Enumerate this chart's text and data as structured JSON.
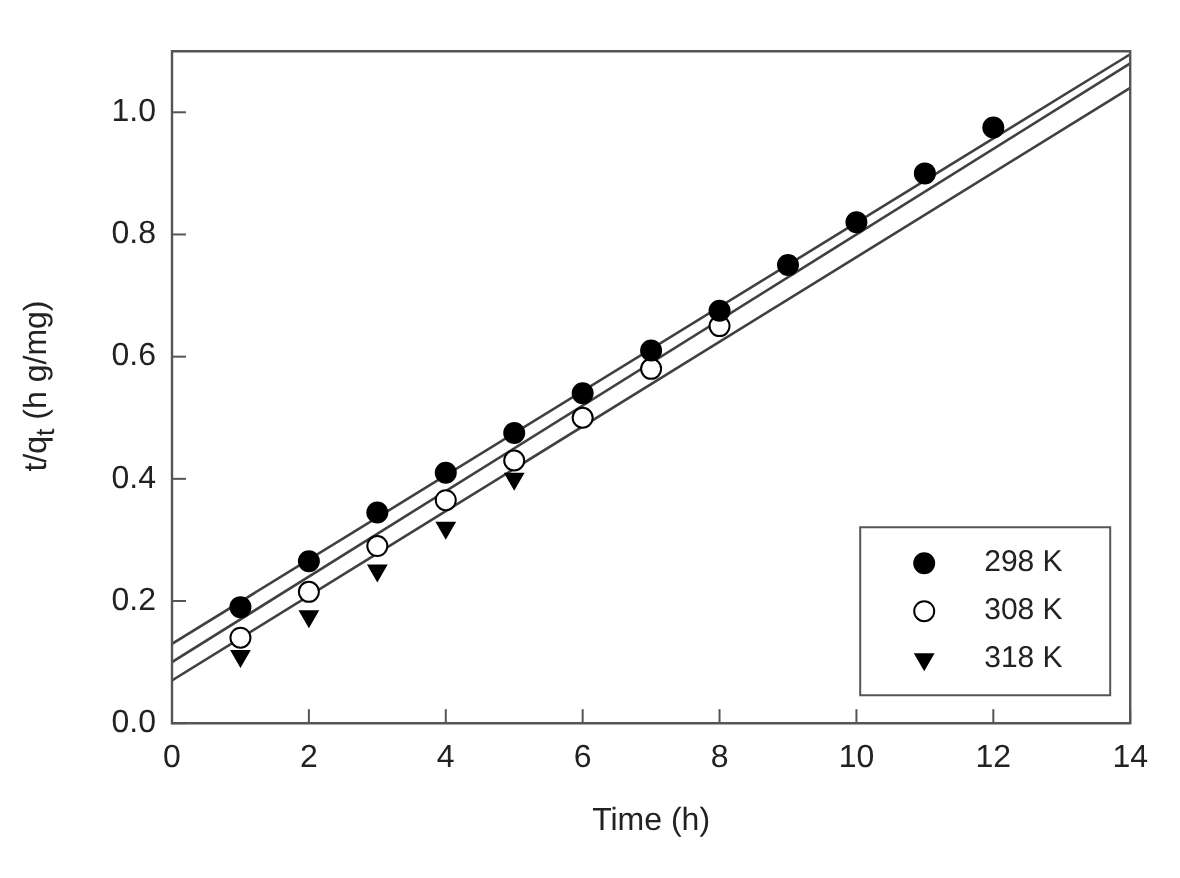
{
  "chart_data": {
    "type": "scatter",
    "xlabel": "Time (h)",
    "ylabel": "t/q$_{t}$  (h g/mg)",
    "xlim": [
      0,
      14
    ],
    "xticks": [
      0,
      2,
      4,
      6,
      8,
      10,
      12,
      14
    ],
    "ylim": [
      0,
      1.1
    ],
    "yticks": [
      {
        "value": 0,
        "label": "0.0"
      },
      0.2,
      0.4,
      0.6,
      0.8,
      {
        "value": 1,
        "label": "1.0"
      }
    ],
    "grid": false,
    "legend": "bottom right",
    "series": [
      {
        "name": "298 K",
        "color": "#000000",
        "marker": "circle",
        "x": [
          1,
          2,
          3,
          4,
          5,
          6,
          7,
          8,
          9,
          10,
          11,
          12
        ],
        "values": [
          0.19,
          0.265,
          0.345,
          0.41,
          0.475,
          0.54,
          0.61,
          0.675,
          0.75,
          0.82,
          0.9,
          0.975
        ]
      },
      {
        "name": "308 K",
        "color": "#ffffff",
        "marker": "circle",
        "x": [
          1,
          2,
          3,
          4,
          5,
          6,
          7,
          8
        ],
        "values": [
          0.14,
          0.215,
          0.29,
          0.365,
          0.43,
          0.5,
          0.58,
          0.65
        ]
      },
      {
        "name": "318 K",
        "color": "#000000",
        "marker": "triangle",
        "x": [
          1,
          2,
          3,
          4,
          5
        ],
        "values": [
          0.11,
          0.175,
          0.25,
          0.32,
          0.4
        ]
      },
      {
        "type": "line",
        "color": "#404040",
        "marker": "none",
        "x": [
          0,
          14
        ],
        "values": [
          0.13,
          1.095
        ]
      },
      {
        "type": "line",
        "color": "#404040",
        "marker": "none",
        "x": [
          0,
          14
        ],
        "values": [
          0.1,
          1.08
        ]
      },
      {
        "type": "line",
        "color": "#404040",
        "marker": "none",
        "x": [
          0,
          14
        ],
        "values": [
          0.07,
          1.04
        ]
      }
    ]
  }
}
